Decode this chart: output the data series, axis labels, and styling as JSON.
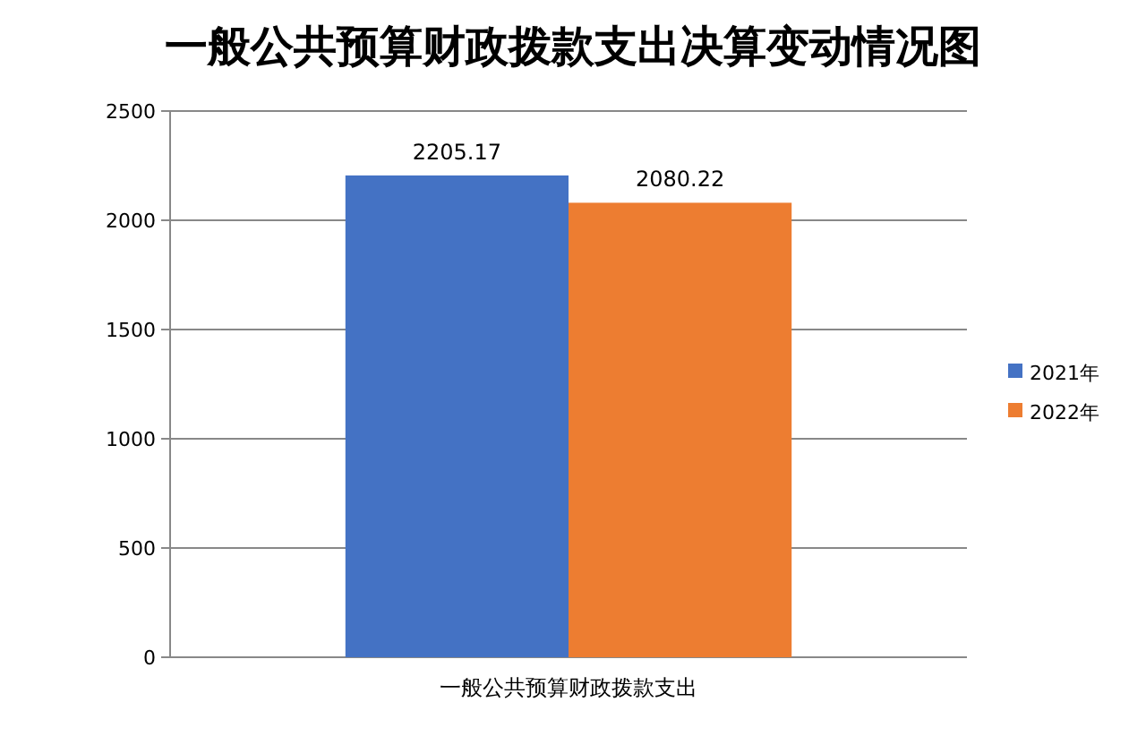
{
  "chart_data": {
    "type": "bar",
    "title": "一般公共预算财政拨款支出决算变动情况图",
    "categories": [
      "一般公共预算财政拨款支出"
    ],
    "series": [
      {
        "name": "2021年",
        "color": "#4472c4",
        "values": [
          2205.17
        ]
      },
      {
        "name": "2022年",
        "color": "#ed7d31",
        "values": [
          2080.22
        ]
      }
    ],
    "ylim": [
      0,
      2500
    ],
    "yticks": [
      0,
      500,
      1000,
      1500,
      2000,
      2500
    ],
    "grid": "y",
    "legend": "right",
    "data_labels": true
  }
}
